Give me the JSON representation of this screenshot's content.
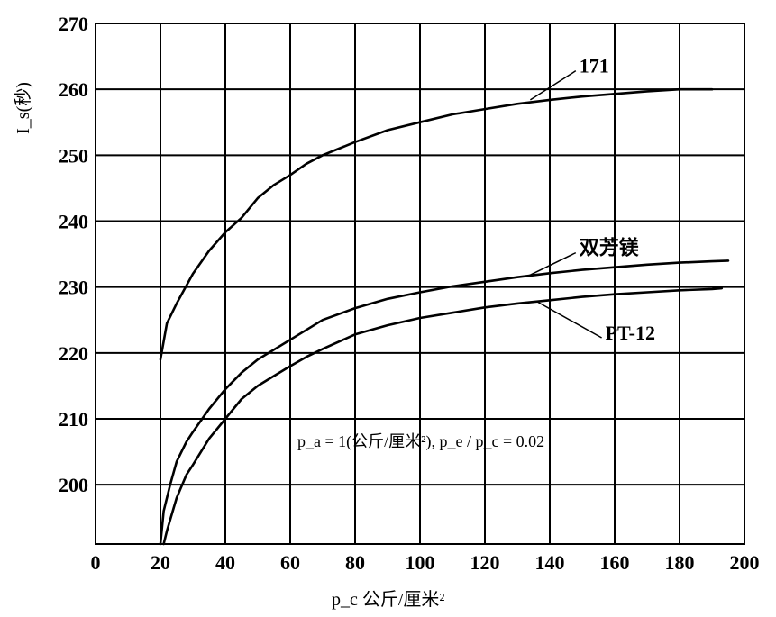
{
  "chart_data": {
    "type": "line",
    "title": "",
    "xlabel": "p_c 公斤/厘米²",
    "ylabel": "I_s(秒)",
    "xlim": [
      0,
      200
    ],
    "ylim": [
      191,
      270
    ],
    "xticks": [
      "0",
      "20",
      "40",
      "60",
      "80",
      "100",
      "120",
      "140",
      "160",
      "180",
      "200"
    ],
    "yticks": [
      "200",
      "210",
      "220",
      "230",
      "240",
      "250",
      "260",
      "270"
    ],
    "grid": true,
    "annotation": "p_a = 1(公斤/厘米²), p_e / p_c = 0.02",
    "series": [
      {
        "name": "171",
        "x": [
          20,
          22,
          25,
          30,
          35,
          40,
          45,
          50,
          55,
          60,
          65,
          70,
          75,
          80,
          90,
          100,
          110,
          120,
          130,
          140,
          150,
          160,
          170,
          180,
          190
        ],
        "y": [
          219,
          224.5,
          227.5,
          232,
          235.5,
          238.3,
          240.5,
          243.5,
          245.5,
          247,
          248.7,
          250,
          251,
          252,
          253.8,
          255,
          256.2,
          257,
          257.8,
          258.4,
          258.9,
          259.3,
          259.7,
          260,
          260
        ]
      },
      {
        "name": "双芳镁",
        "x": [
          20,
          21,
          23,
          25,
          28,
          30,
          35,
          40,
          45,
          50,
          55,
          60,
          65,
          70,
          80,
          90,
          100,
          110,
          120,
          130,
          140,
          150,
          160,
          170,
          180,
          190,
          195
        ],
        "y": [
          191,
          196,
          200,
          203.5,
          206.5,
          208,
          211.5,
          214.5,
          217,
          219,
          220.5,
          222,
          223.5,
          225,
          226.8,
          228.2,
          229.2,
          230.1,
          230.8,
          231.5,
          232.1,
          232.6,
          233,
          233.4,
          233.7,
          233.9,
          234
        ]
      },
      {
        "name": "PT-12",
        "x": [
          21,
          22,
          25,
          28,
          30,
          35,
          40,
          45,
          50,
          55,
          60,
          65,
          70,
          80,
          90,
          100,
          110,
          120,
          130,
          140,
          150,
          160,
          170,
          180,
          190,
          193
        ],
        "y": [
          191,
          193,
          198,
          201.5,
          203,
          207,
          210,
          213,
          215,
          216.5,
          218,
          219.4,
          220.6,
          222.8,
          224.2,
          225.3,
          226.1,
          226.9,
          227.5,
          228,
          228.5,
          228.9,
          229.2,
          229.5,
          229.7,
          229.8
        ]
      }
    ],
    "series_labels": [
      {
        "series": "171",
        "text": "171",
        "at": [
          134,
          258.4
        ],
        "label_at": [
          148,
          262.8
        ]
      },
      {
        "series": "双芳镁",
        "text": "双芳镁",
        "at": [
          133,
          231.6
        ],
        "label_at": [
          148,
          235.2
        ]
      },
      {
        "series": "PT-12",
        "text": "PT-12",
        "at": [
          136,
          227.8
        ],
        "label_at": [
          156,
          222.3
        ]
      }
    ]
  }
}
